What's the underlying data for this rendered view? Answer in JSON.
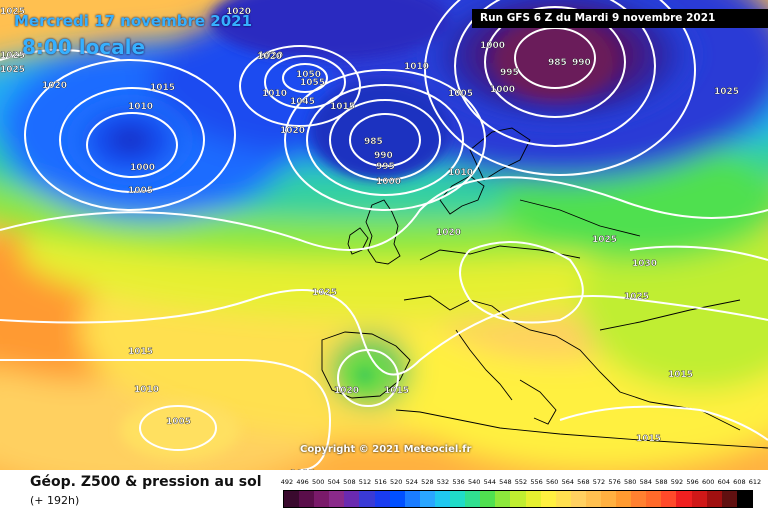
{
  "header": {
    "date_label": "Mercredi 17 novembre 2021",
    "time_label": "8:00 locale",
    "run_label": "Run GFS 6 Z du Mardi 9 novembre 2021",
    "copyright": "Copyright © 2021 Meteociel.fr"
  },
  "footer": {
    "title": "Géop. Z500 & pression au sol",
    "subtitle": "(+ 192h)"
  },
  "scale": {
    "ticks": [
      "492",
      "496",
      "500",
      "504",
      "508",
      "512",
      "516",
      "520",
      "524",
      "528",
      "532",
      "536",
      "540",
      "544",
      "548",
      "552",
      "556",
      "560",
      "564",
      "568",
      "572",
      "576",
      "580",
      "584",
      "588",
      "592",
      "596",
      "600",
      "604",
      "608",
      "612"
    ],
    "colors": [
      "#3a0a2e",
      "#5a0e4a",
      "#7a1a6a",
      "#8a2a8a",
      "#6a2ab0",
      "#3a3ad6",
      "#1a3cf0",
      "#0050ff",
      "#1a7cff",
      "#2aa6ff",
      "#20c8f0",
      "#20dcc8",
      "#30e090",
      "#50e050",
      "#8ce83c",
      "#c0ee30",
      "#e6f030",
      "#fff040",
      "#ffe050",
      "#ffd060",
      "#ffc050",
      "#ffb040",
      "#ff9a30",
      "#ff8030",
      "#ff6a2a",
      "#ff4a2a",
      "#f02020",
      "#d01818",
      "#a01010",
      "#601010",
      "#000000"
    ]
  },
  "pressure_labels": [
    {
      "text": "1025"
    },
    {
      "text": "1025"
    },
    {
      "text": "1025"
    },
    {
      "text": "1020"
    },
    {
      "text": "1020"
    },
    {
      "text": "1015"
    },
    {
      "text": "1010"
    },
    {
      "text": "1000"
    },
    {
      "text": "1005"
    },
    {
      "text": "1020"
    },
    {
      "text": "1010"
    },
    {
      "text": "1050"
    },
    {
      "text": "1055"
    },
    {
      "text": "1045"
    },
    {
      "text": "1015"
    },
    {
      "text": "1020"
    },
    {
      "text": "985"
    },
    {
      "text": "990"
    },
    {
      "text": "995"
    },
    {
      "text": "1000"
    },
    {
      "text": "1010"
    },
    {
      "text": "1005"
    },
    {
      "text": "1000"
    },
    {
      "text": "995"
    },
    {
      "text": "985"
    },
    {
      "text": "990"
    },
    {
      "text": "1000"
    },
    {
      "text": "1025"
    },
    {
      "text": "1010"
    },
    {
      "text": "1020"
    },
    {
      "text": "1025"
    },
    {
      "text": "1030"
    },
    {
      "text": "1025"
    },
    {
      "text": "1015"
    },
    {
      "text": "1015"
    },
    {
      "text": "1025"
    },
    {
      "text": "1015"
    },
    {
      "text": "1010"
    },
    {
      "text": "1005"
    },
    {
      "text": "1020"
    },
    {
      "text": "1015"
    },
    {
      "text": "1015"
    },
    {
      "text": "1020"
    }
  ]
}
